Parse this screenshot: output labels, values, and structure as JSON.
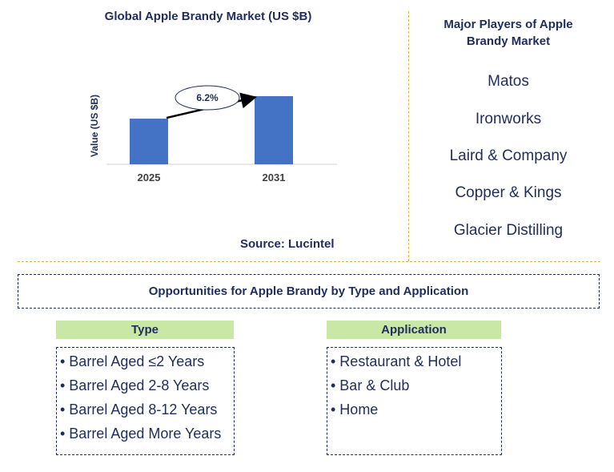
{
  "chart_data": {
    "type": "bar",
    "title": "Global Apple Brandy Market (US $B)",
    "ylabel": "Value (US $B)",
    "categories": [
      "2025",
      "2031"
    ],
    "values": [
      0.67,
      1.0
    ],
    "cagr_label": "6.2%",
    "source": "Source: Lucintel",
    "bar_color": "#4472c4"
  },
  "players": {
    "title": "Major Players of Apple Brandy Market",
    "items": [
      "Matos",
      "Ironworks",
      "Laird & Company",
      "Copper & Kings",
      "Glacier Distilling"
    ]
  },
  "opportunities": {
    "title": "Opportunities for Apple Brandy by Type and Application",
    "type_header": "Type",
    "type_items": [
      "• Barrel Aged ≤2 Years",
      "• Barrel Aged 2-8 Years",
      "• Barrel Aged 8-12 Years",
      "• Barrel Aged More Years"
    ],
    "application_header": "Application",
    "application_items": [
      "• Restaurant & Hotel",
      "• Bar & Club",
      "• Home"
    ]
  }
}
